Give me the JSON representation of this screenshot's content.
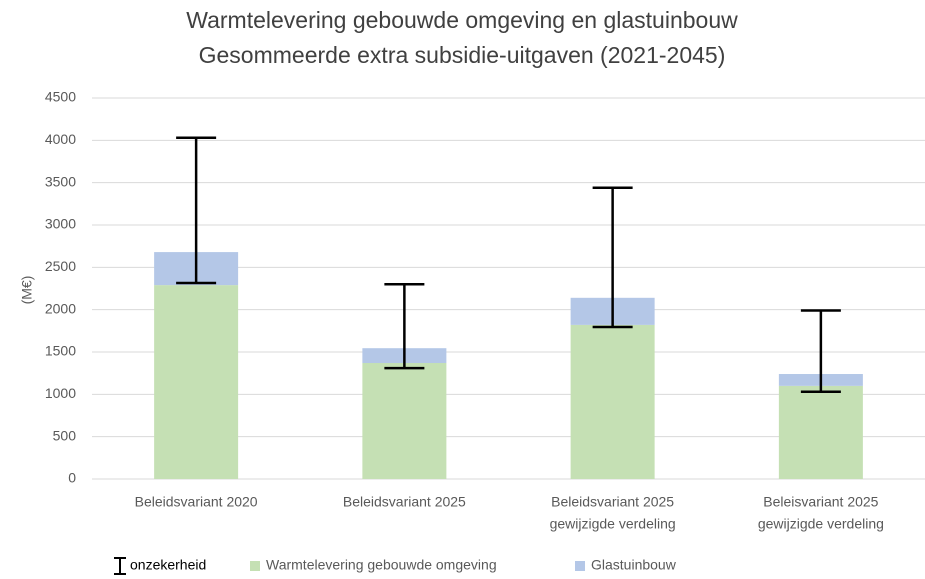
{
  "chart_data": {
    "type": "bar",
    "title": "Warmtelevering gebouwde omgeving en glastuinbouw",
    "subtitle": "Gesommeerde  extra subsidie-uitgaven (2021-2045)",
    "y_label": "(M€)",
    "stacked": true,
    "categories": [
      [
        "Beleidsvariant 2020"
      ],
      [
        "Beleidsvariant 2025"
      ],
      [
        "Beleidsvariant 2025",
        "gewijzigde verdeling"
      ],
      [
        "Beleisvariant 2025",
        "gewijzigde verdeling"
      ]
    ],
    "series": [
      {
        "name": "Warmtelevering gebouwde omgeving",
        "color": "#c5e0b4",
        "values": [
          2290,
          1370,
          1820,
          1100
        ]
      },
      {
        "name": "Glastuinbouw",
        "color": "#b4c7e7",
        "values": [
          390,
          175,
          320,
          140
        ]
      }
    ],
    "error_range": {
      "name": "onzekerheid",
      "color": "#000000",
      "low": [
        2315,
        1310,
        1795,
        1030
      ],
      "high": [
        4030,
        2300,
        3440,
        1990
      ]
    },
    "ylim": [
      0,
      4500
    ],
    "yticks": [
      0,
      500,
      1000,
      1500,
      2000,
      2500,
      3000,
      3500,
      4000,
      4500
    ],
    "grid": true,
    "legend": "bottom"
  }
}
